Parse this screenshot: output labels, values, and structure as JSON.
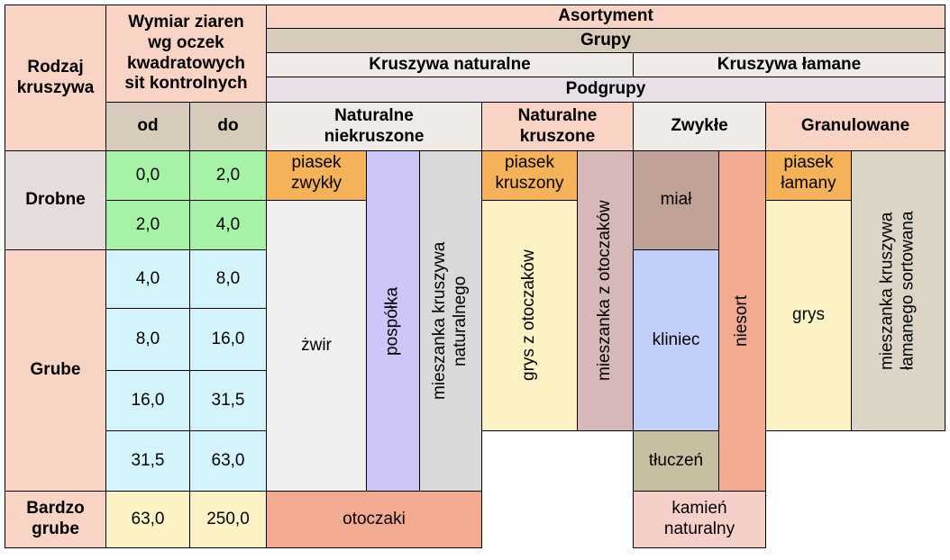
{
  "header": {
    "rodzaj": "Rodzaj\nkruszywa",
    "wymiar": "Wymiar ziaren\nwg oczek\nkwadratowych\nsit kontrolnych",
    "od": "od",
    "do": "do",
    "asortyment": "Asortyment",
    "grupy": "Grupy",
    "kruszywa_naturalne": "Kruszywa naturalne",
    "kruszywa_lamane": "Kruszywa łamane",
    "podgrupy": "Podgrupy",
    "naturalne_niekruszone": "Naturalne\nniekruszone",
    "naturalne_kruszone": "Naturalne\nkruszone",
    "zwykle": "Zwykłe",
    "granulowane": "Granulowane"
  },
  "rows": {
    "drobne": "Drobne",
    "grube": "Grube",
    "bardzo_grube": "Bardzo\ngrube"
  },
  "sizes": [
    {
      "od": "0,0",
      "do": "2,0"
    },
    {
      "od": "2,0",
      "do": "4,0"
    },
    {
      "od": "4,0",
      "do": "8,0"
    },
    {
      "od": "8,0",
      "do": "16,0"
    },
    {
      "od": "16,0",
      "do": "31,5"
    },
    {
      "od": "31,5",
      "do": "63,0"
    },
    {
      "od": "63,0",
      "do": "250,0"
    }
  ],
  "cells": {
    "piasek_zwykly": "piasek\nzwykły",
    "zwir": "żwir",
    "pospolka": "pospółka",
    "mieszanka_naturalnego": "mieszanka kruszywa\nnaturalnego",
    "otoczaki": "otoczaki",
    "piasek_kruszony": "piasek\nkruszony",
    "grys_z_otoczakow": "grys z otoczaków",
    "mieszanka_z_otoczakow": "mieszanka z otoczaków",
    "mial": "miał",
    "kliniec": "kliniec",
    "tluczen": "tłuczeń",
    "niesort": "niesort",
    "kamien_naturalny": "kamień\nnaturalny",
    "piasek_lamany": "piasek\nłamany",
    "grys": "grys",
    "mieszanka_lamanego": "mieszanka kruszywa\nłamanego sortowana"
  },
  "colors": {
    "header_pink": "#f9d4c4",
    "header_taupe": "#d7ccbb",
    "header_light": "#f0ebe6",
    "header_lavender": "#e8dfe8",
    "drobne_bg": "#e6dcd9",
    "green": "#a6f2a6",
    "cyan": "#d4f4fb",
    "cream": "#fdf2c4",
    "orange": "#f5b258",
    "white_grey": "#f2efef",
    "lavender": "#cdc6f8",
    "grey": "#d9d9d9",
    "salmon": "#f2aa90",
    "mauve": "#d6b8b8",
    "brown_grey": "#c0a297",
    "blue": "#c2cffb",
    "olive_grey": "#c8bfa0",
    "light_pink": "#f4d0c8",
    "khaki": "#dcd5c6"
  }
}
